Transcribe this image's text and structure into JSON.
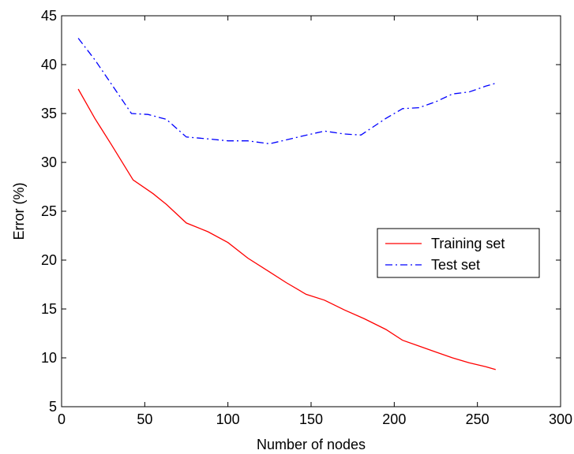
{
  "chart_data": {
    "type": "line",
    "title": "",
    "xlabel": "Number of nodes",
    "ylabel": "Error (%)",
    "xlim": [
      0,
      300
    ],
    "ylim": [
      5,
      45
    ],
    "xticks": [
      0,
      50,
      100,
      150,
      200,
      250,
      300
    ],
    "yticks": [
      5,
      10,
      15,
      20,
      25,
      30,
      35,
      40,
      45
    ],
    "grid": false,
    "legend_position": "right",
    "series": [
      {
        "name": "Training set",
        "color": "#ff0000",
        "style": "solid",
        "x": [
          10,
          20,
          30,
          43,
          55,
          63,
          75,
          88,
          100,
          112,
          125,
          135,
          147,
          158,
          170,
          182,
          195,
          205,
          215,
          225,
          235,
          245,
          255,
          261
        ],
        "y": [
          37.5,
          34.5,
          31.8,
          28.2,
          26.8,
          25.7,
          23.8,
          22.9,
          21.8,
          20.2,
          18.8,
          17.7,
          16.5,
          15.9,
          14.9,
          14.0,
          12.9,
          11.8,
          11.2,
          10.6,
          10.0,
          9.5,
          9.1,
          8.8
        ],
        "legend_label": "Training set"
      },
      {
        "name": "Test set",
        "color": "#0000ff",
        "style": "dashdot",
        "x": [
          10,
          20,
          30,
          42,
          52,
          63,
          75,
          88,
          100,
          112,
          125,
          135,
          145,
          158,
          170,
          180,
          195,
          205,
          215,
          225,
          235,
          245,
          255,
          261
        ],
        "y": [
          42.7,
          40.5,
          38.0,
          35.0,
          34.9,
          34.4,
          32.6,
          32.4,
          32.2,
          32.2,
          31.9,
          32.3,
          32.7,
          33.2,
          32.9,
          32.8,
          34.5,
          35.5,
          35.6,
          36.2,
          37.0,
          37.2,
          37.8,
          38.1
        ],
        "legend_label": "Test set"
      }
    ]
  }
}
